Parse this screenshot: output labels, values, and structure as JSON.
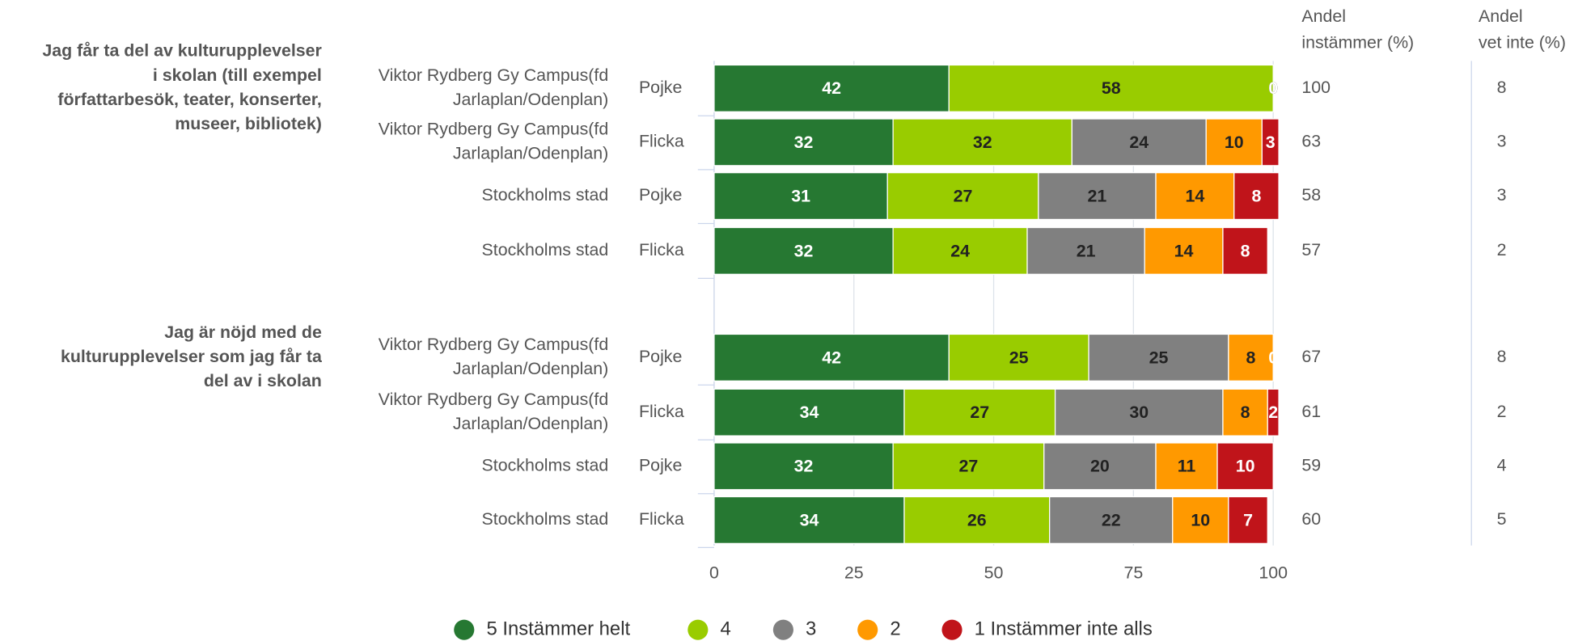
{
  "chart_data": {
    "type": "stacked-bar-horizontal",
    "questions": [
      [
        "Jag får ta del av kulturupplevelser",
        "i skolan (till exempel",
        "författarbesök, teater, konserter,",
        "museer, bibliotek)"
      ],
      [
        "Jag är nöjd med de",
        "kulturupplevelser som jag får ta",
        "del av i skolan"
      ]
    ],
    "rows": [
      {
        "school": [
          "Viktor Rydberg Gy Campus(fd",
          "Jarlaplan/Odenplan)"
        ],
        "gender": "Pojke"
      },
      {
        "school": [
          "Viktor Rydberg Gy Campus(fd",
          "Jarlaplan/Odenplan)"
        ],
        "gender": "Flicka"
      },
      {
        "school": [
          "Stockholms stad"
        ],
        "gender": "Pojke"
      },
      {
        "school": [
          "Stockholms stad"
        ],
        "gender": "Flicka"
      },
      {
        "school": [
          "Viktor Rydberg Gy Campus(fd",
          "Jarlaplan/Odenplan)"
        ],
        "gender": "Pojke"
      },
      {
        "school": [
          "Viktor Rydberg Gy Campus(fd",
          "Jarlaplan/Odenplan)"
        ],
        "gender": "Flicka"
      },
      {
        "school": [
          "Stockholms stad"
        ],
        "gender": "Pojke"
      },
      {
        "school": [
          "Stockholms stad"
        ],
        "gender": "Flicka"
      }
    ],
    "series": [
      {
        "name": "5 Instämmer helt",
        "color": "#267832",
        "label_color": "#ffffff",
        "values": [
          42,
          32,
          31,
          32,
          42,
          34,
          32,
          34
        ]
      },
      {
        "name": "4",
        "color": "#99cc00",
        "label_color": "#222222",
        "values": [
          58,
          32,
          27,
          24,
          25,
          27,
          27,
          26
        ]
      },
      {
        "name": "3",
        "color": "#808080",
        "label_color": "#222222",
        "values": [
          0,
          24,
          21,
          21,
          25,
          30,
          20,
          22
        ]
      },
      {
        "name": "2",
        "color": "#ff9900",
        "label_color": "#222222",
        "values": [
          0,
          10,
          14,
          14,
          8,
          8,
          11,
          10
        ]
      },
      {
        "name": "1 Instämmer inte alls",
        "color": "#c0141a",
        "label_color": "#ffffff",
        "values": [
          0,
          3,
          8,
          8,
          0,
          2,
          10,
          7
        ]
      }
    ],
    "columns": [
      {
        "header": [
          "Andel",
          "instämmer (%)"
        ],
        "values": [
          100,
          63,
          58,
          57,
          67,
          61,
          59,
          60
        ]
      },
      {
        "header": [
          "Andel",
          "vet inte (%)"
        ],
        "values": [
          8,
          3,
          3,
          2,
          8,
          2,
          4,
          5
        ]
      }
    ],
    "xlim": [
      0,
      100
    ],
    "xticks": [
      0,
      25,
      50,
      75,
      100
    ],
    "grid": true,
    "legend": "bottom"
  }
}
